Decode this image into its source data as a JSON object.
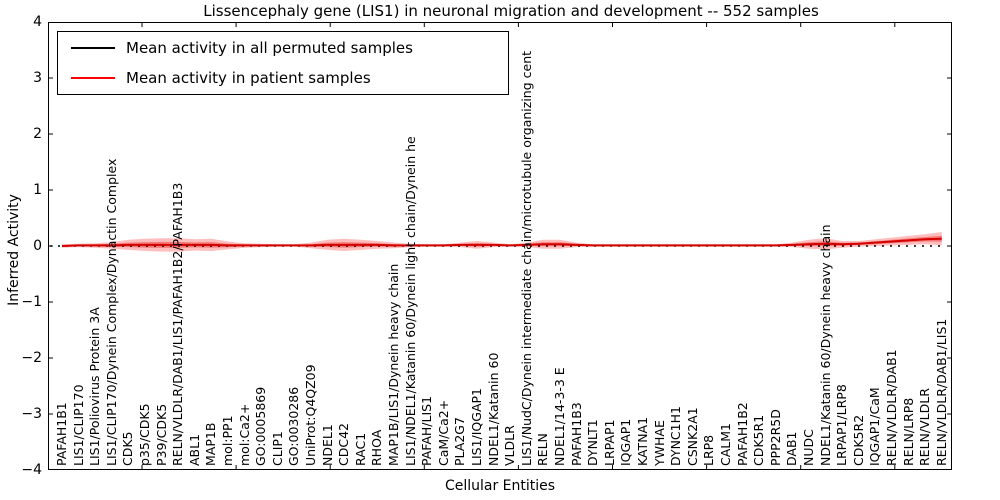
{
  "title": "Lissencephaly gene (LIS1) in neuronal migration and development -- 552 samples",
  "legend": {
    "items": [
      {
        "label": "Mean activity in all permuted samples",
        "color": "#000000"
      },
      {
        "label": "Mean activity in patient samples",
        "color": "#ff0000"
      }
    ]
  },
  "axes": {
    "ylabel": "Inferred Activity",
    "xlabel": "Cellular Entities",
    "ytick_labels": [
      "4",
      "3",
      "2",
      "1",
      "0",
      "−1",
      "−2",
      "−3",
      "−4"
    ]
  },
  "colors": {
    "patient_line": "#d40000",
    "band_outer": "rgba(255,40,40,0.30)",
    "band_inner": "rgba(235,20,20,0.40)",
    "permuted_line": "#000000",
    "frame": "#000000"
  },
  "chart_data": {
    "type": "line",
    "title": "Lissencephaly gene (LIS1) in neuronal migration and development -- 552 samples",
    "xlabel": "Cellular Entities",
    "ylabel": "Inferred Activity",
    "ylim": [
      -4,
      4
    ],
    "yticks": [
      4,
      3,
      2,
      1,
      0,
      -1,
      -2,
      -3,
      -4
    ],
    "grid": false,
    "legend_position": "upper left",
    "categories": [
      "PAFAH1B1",
      "LIS1/CLIP170",
      "LIS1/Poliovirus Protein 3A",
      "LIS1/CLIP170/Dynein Complex/Dynactin Complex",
      "CDK5",
      "p35/CDK5",
      "P39/CDK5",
      "RELN/VLDLR/DAB1/LIS1/PAFAH1B2/PAFAH1B3",
      "ABL1",
      "MAP1B",
      "mol:PP1",
      "mol:Ca2+",
      "GO:0005869",
      "CLIP1",
      "GO:0030286",
      "UniProt:Q4QZ09",
      "NDEL1",
      "CDC42",
      "RAC1",
      "RHOA",
      "MAP1B/LIS1/Dynein heavy chain",
      "LIS1/NDEL1/Katanin 60/Dynein light chain/Dynein he",
      "PAFAH/LIS1",
      "CaM/Ca2+",
      "PLA2G7",
      "LIS1/IQGAP1",
      "NDEL1/Katanin 60",
      "VLDLR",
      "LIS1/NudC/Dynein intermediate chain/microtubule organizing cent",
      "RELN",
      "NDEL1/14-3-3 E",
      "PAFAH1B3",
      "DYNLT1",
      "LRPAP1",
      "IQGAP1",
      "KATNA1",
      "YWHAE",
      "DYNC1H1",
      "CSNK2A1",
      "LRP8",
      "CALM1",
      "PAFAH1B2",
      "CDK5R1",
      "PPP2R5D",
      "DAB1",
      "NUDC",
      "NDEL1/Katanin 60/Dynein heavy chain",
      "LRPAP1/LRP8",
      "CDK5R2",
      "IQGAP1/CaM",
      "RELN/VLDLR/DAB1",
      "RELN/LRP8",
      "RELN/VLDLR",
      "RELN/VLDLR/DAB1/LIS1"
    ],
    "series": [
      {
        "name": "Mean activity in all permuted samples",
        "color": "#000000",
        "style": "dotted",
        "values": [
          0,
          0,
          0,
          0,
          0,
          0,
          0,
          0,
          0,
          0,
          0,
          0,
          0,
          0,
          0,
          0,
          0,
          0,
          0,
          0,
          0,
          0,
          0,
          0,
          0,
          0,
          0,
          0,
          0,
          0,
          0,
          0,
          0,
          0,
          0,
          0,
          0,
          0,
          0,
          0,
          0,
          0,
          0,
          0,
          0,
          0,
          0,
          0,
          0,
          0,
          0,
          0,
          0,
          0
        ]
      },
      {
        "name": "Mean activity in patient samples",
        "color": "#ff0000",
        "style": "solid",
        "values": [
          0,
          0.01,
          0.01,
          0.01,
          0.02,
          0.02,
          0.02,
          0.02,
          0.02,
          0.02,
          0.01,
          0.01,
          0.01,
          0.01,
          0.01,
          0.01,
          0.02,
          0.02,
          0.02,
          0.02,
          0.01,
          0.01,
          0.01,
          0.01,
          0.02,
          0.02,
          0.02,
          0.01,
          0.02,
          0.03,
          0.03,
          0.02,
          0.01,
          0.01,
          0.01,
          0.01,
          0.01,
          0.01,
          0.01,
          0.01,
          0.01,
          0.01,
          0.01,
          0.01,
          0.02,
          0.03,
          0.04,
          0.03,
          0.04,
          0.06,
          0.08,
          0.1,
          0.12,
          0.13
        ]
      }
    ],
    "band": {
      "name": "patient samples spread around mean",
      "half_widths": [
        0.03,
        0.03,
        0.04,
        0.06,
        0.09,
        0.11,
        0.12,
        0.12,
        0.1,
        0.11,
        0.07,
        0.04,
        0.03,
        0.02,
        0.02,
        0.05,
        0.09,
        0.11,
        0.09,
        0.07,
        0.05,
        0.03,
        0.02,
        0.02,
        0.04,
        0.07,
        0.04,
        0.02,
        0.04,
        0.08,
        0.08,
        0.04,
        0.02,
        0.02,
        0.02,
        0.02,
        0.02,
        0.02,
        0.02,
        0.02,
        0.02,
        0.02,
        0.02,
        0.02,
        0.04,
        0.08,
        0.1,
        0.06,
        0.05,
        0.06,
        0.07,
        0.08,
        0.09,
        0.12
      ]
    }
  }
}
